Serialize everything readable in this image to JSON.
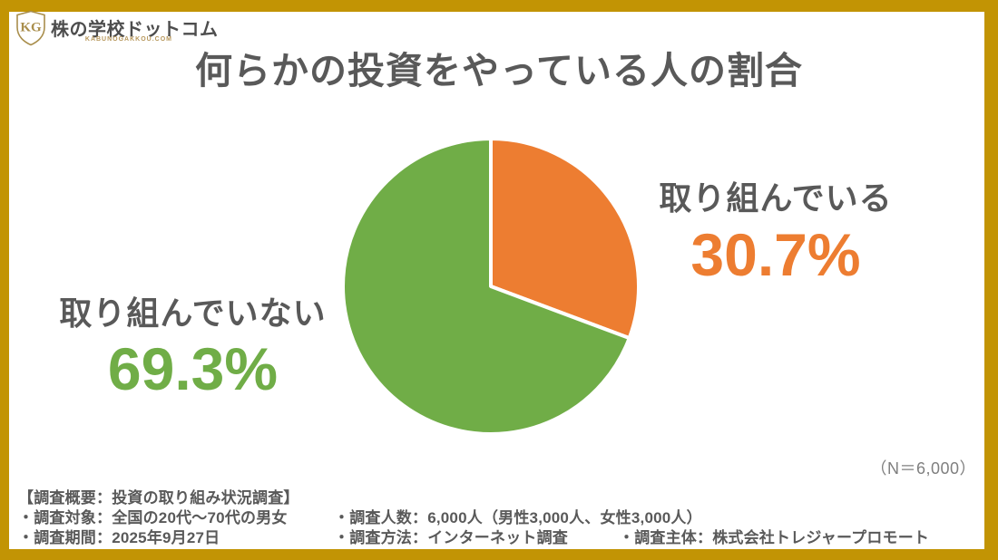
{
  "logo": {
    "monogram": "KG",
    "name": "株の学校ドットコム",
    "domain": "KABUNOGAKKOU.COM"
  },
  "title": "何らかの投資をやっている人の割合",
  "n_note": "（N＝6,000）",
  "chart_data": {
    "type": "pie",
    "title": "何らかの投資をやっている人の割合",
    "n": 6000,
    "start_angle_deg": -90,
    "direction": "clockwise",
    "slices": [
      {
        "label": "取り組んでいる",
        "value": 30.7,
        "value_label": "30.7%",
        "color": "#ED7D31"
      },
      {
        "label": "取り組んでいない",
        "value": 69.3,
        "value_label": "69.3%",
        "color": "#70AD47"
      }
    ]
  },
  "survey": {
    "header": "【調査概要：投資の取り組み状況調査】",
    "target": "・調査対象：全国の20代～70代の男女",
    "people": "・調査人数：6,000人（男性3,000人、女性3,000人）",
    "period": "・調査期間：2025年9月27日",
    "method": "・調査方法：インターネット調査",
    "publisher": "・調査主体：株式会社トレジャープロモート"
  },
  "colors": {
    "frame_gold": "#C29404",
    "accent_orange": "#ED7D31",
    "accent_green": "#70AD47",
    "text_dark": "#595959",
    "text_gray": "#7F7F7F",
    "logo_gold": "#A98E4C"
  }
}
